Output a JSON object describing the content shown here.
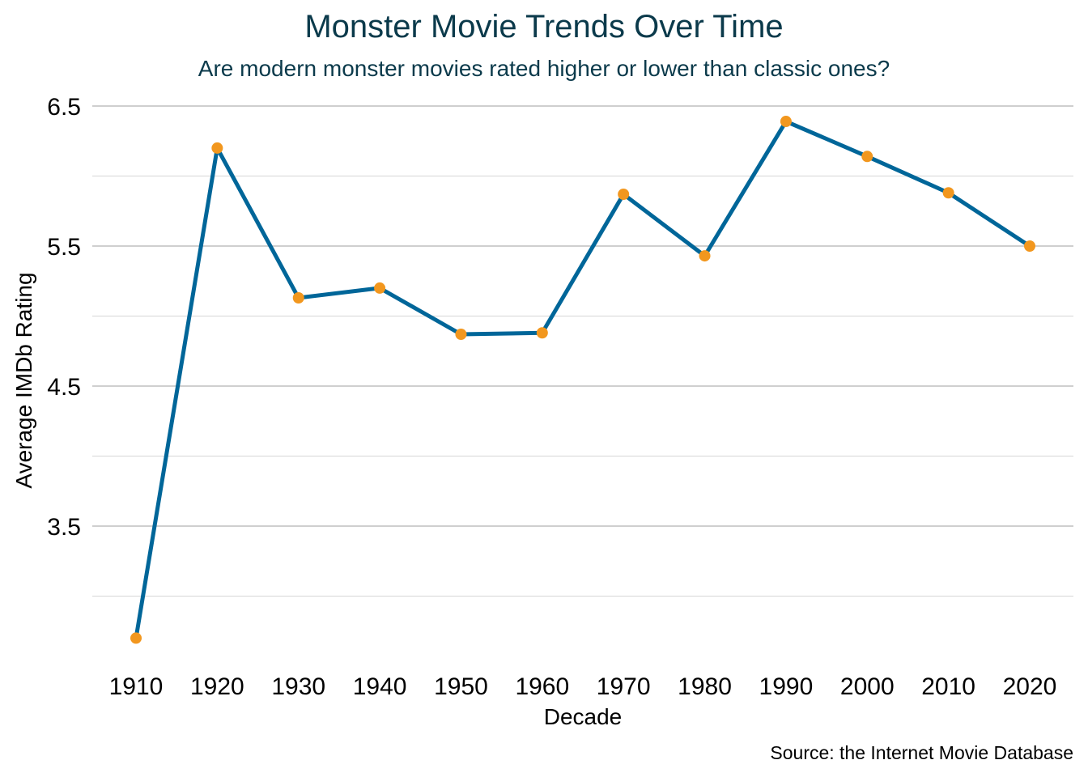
{
  "chart_data": {
    "type": "line",
    "title": "Monster Movie Trends Over Time",
    "subtitle": "Are modern monster movies rated higher or lower than classic ones?",
    "xlabel": "Decade",
    "ylabel": "Average IMDb Rating",
    "caption": "Source: the Internet Movie Database",
    "x": [
      1910,
      1920,
      1930,
      1940,
      1950,
      1960,
      1970,
      1980,
      1990,
      2000,
      2010,
      2020
    ],
    "x_tick_labels": [
      "1910",
      "1920",
      "1930",
      "1940",
      "1950",
      "1960",
      "1970",
      "1980",
      "1990",
      "2000",
      "2010",
      "2020"
    ],
    "series": [
      {
        "values": [
          2.7,
          6.2,
          5.13,
          5.2,
          4.87,
          4.88,
          5.87,
          5.43,
          6.39,
          6.14,
          5.88,
          5.5
        ]
      }
    ],
    "ylim": [
      2.6,
      6.6
    ],
    "y_ticks": [
      3.5,
      4.5,
      5.5,
      6.5
    ],
    "y_tick_labels": [
      "3.5",
      "4.5",
      "5.5",
      "6.5"
    ],
    "y_minor_ticks": [
      3.0,
      4.0,
      5.0,
      6.0
    ],
    "grid": true,
    "legend": "none",
    "colors": {
      "line": "#006699",
      "points": "#f2971e",
      "title": "#0b3a4b"
    }
  }
}
